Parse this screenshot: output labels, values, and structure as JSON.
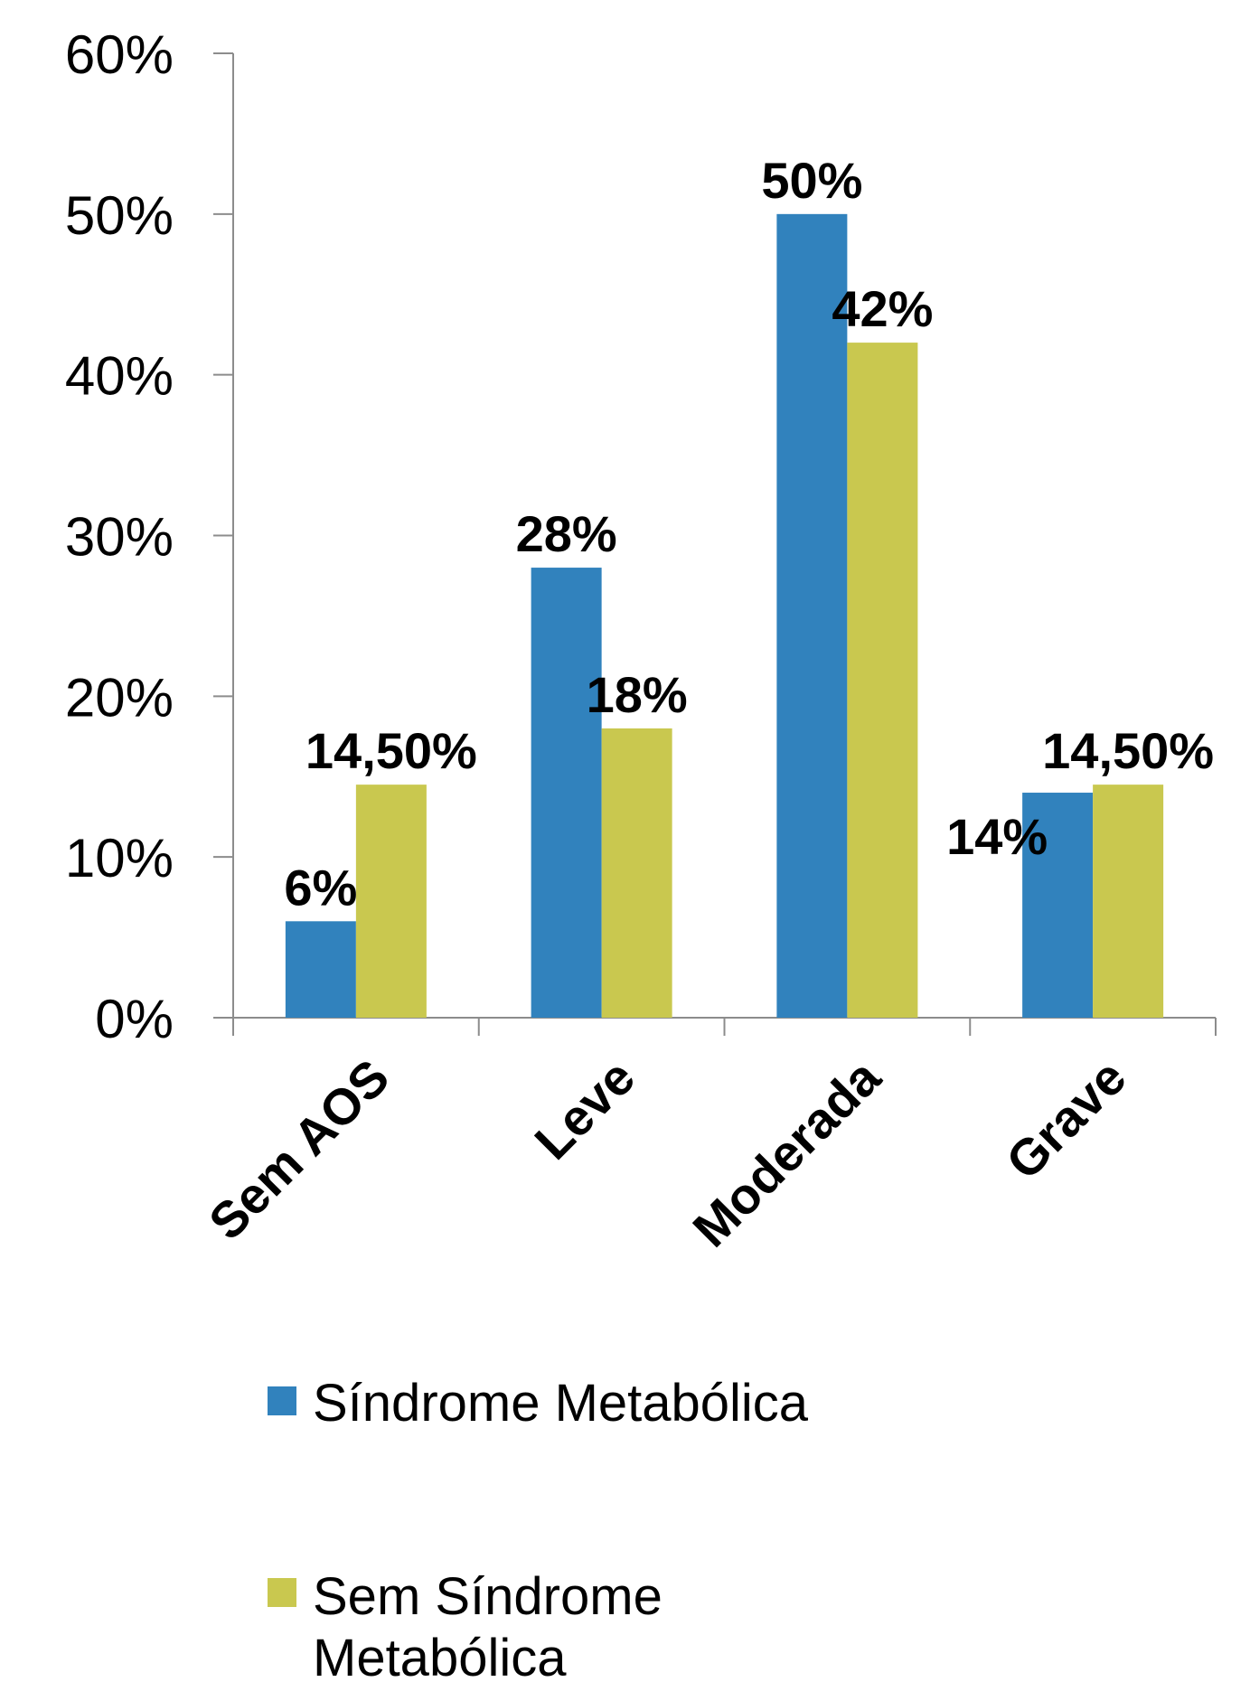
{
  "chart_data": {
    "type": "bar",
    "categories": [
      "Sem AOS",
      "Leve",
      "Moderada",
      "Grave"
    ],
    "series": [
      {
        "name": "Síndrome Metabólica",
        "color": "#3182bd",
        "values": [
          6,
          28,
          50,
          14
        ],
        "labels": [
          "6%",
          "28%",
          "50%",
          "14%"
        ]
      },
      {
        "name": "Sem Síndrome Metabólica",
        "color": "#c9c84f",
        "values": [
          14.5,
          18,
          42,
          14.5
        ],
        "labels": [
          "14,50%",
          "18%",
          "42%",
          "14,50%"
        ]
      }
    ],
    "ylim": [
      0,
      60
    ],
    "yticks": [
      0,
      10,
      20,
      30,
      40,
      50,
      60
    ],
    "ytick_labels": [
      "0%",
      "10%",
      "20%",
      "30%",
      "40%",
      "50%",
      "60%"
    ],
    "title": "",
    "xlabel": "",
    "ylabel": "",
    "grid": false,
    "legend_position": "bottom",
    "legend": {
      "series0_lines": [
        "Síndrome Metabólica"
      ],
      "series1_lines": [
        "Sem Síndrome",
        "Metabólica"
      ]
    }
  }
}
